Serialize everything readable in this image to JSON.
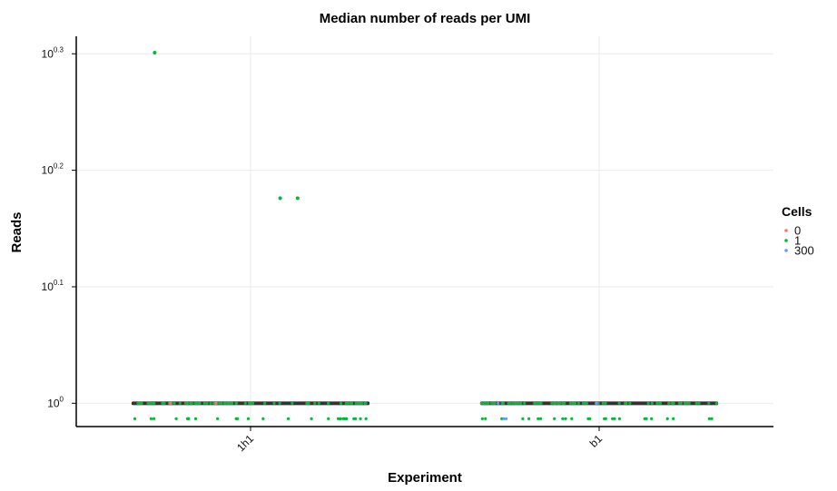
{
  "chart_data": {
    "type": "boxplot-with-jitter",
    "title": "Median number of reads per UMI",
    "xlabel": "Experiment",
    "ylabel": "Reads",
    "y_scale": "log10",
    "ylim_log10": [
      -0.02,
      0.315
    ],
    "yticks": [
      {
        "base": "10",
        "exp": "0",
        "value": 0
      },
      {
        "base": "10",
        "exp": "0.1",
        "value": 0.1
      },
      {
        "base": "10",
        "exp": "0.2",
        "value": 0.2
      },
      {
        "base": "10",
        "exp": "0.3",
        "value": 0.3
      }
    ],
    "categories": [
      "1h1",
      "b1"
    ],
    "grid": true,
    "legend": {
      "title": "Cells",
      "position": "right",
      "entries": [
        {
          "label": "0",
          "color": "#F8766D"
        },
        {
          "label": "1",
          "color": "#00BA38"
        },
        {
          "label": "300",
          "color": "#619CFF"
        }
      ]
    },
    "boxes": [
      {
        "category": "1h1",
        "median_log10": 0,
        "q1_log10": 0,
        "q3_log10": 0
      },
      {
        "category": "b1",
        "median_log10": 0,
        "q1_log10": 0,
        "q3_log10": 0
      }
    ],
    "outliers": [
      {
        "category": "1h1",
        "log10_reads": 0.301,
        "cells": "1",
        "offset": -0.55
      },
      {
        "category": "1h1",
        "log10_reads": 0.176,
        "cells": "1",
        "offset": 0.17
      },
      {
        "category": "1h1",
        "log10_reads": 0.176,
        "cells": "1",
        "offset": 0.27
      }
    ],
    "jitter_points": [
      {
        "category": "1h1",
        "log10_reads": 0,
        "cells": "1",
        "count": 110,
        "spread": 0.45
      },
      {
        "category": "1h1",
        "log10_reads": 0,
        "cells": "0",
        "count": 2,
        "spread": 0.45
      },
      {
        "category": "b1",
        "log10_reads": 0,
        "cells": "1",
        "count": 110,
        "spread": 0.45
      },
      {
        "category": "b1",
        "log10_reads": 0,
        "cells": "300",
        "count": 4,
        "spread": 0.45
      }
    ]
  }
}
